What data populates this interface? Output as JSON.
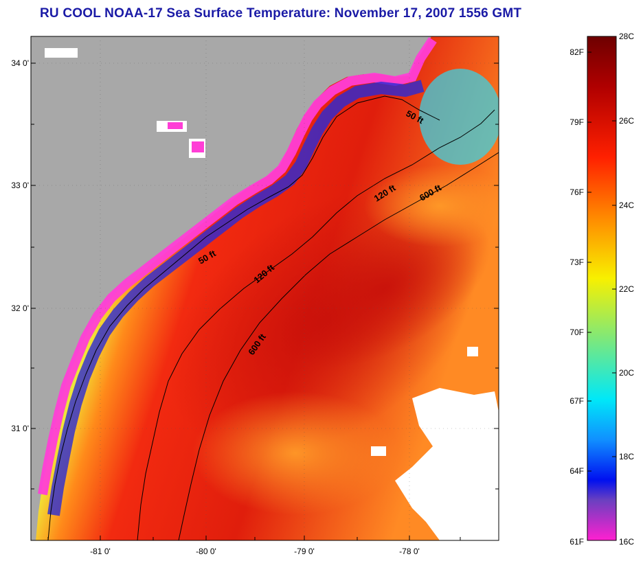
{
  "title": "RU COOL  NOAA-17  Sea Surface Temperature:  November 17, 2007 1556 GMT",
  "axes": {
    "lat_labels": [
      "34 0'",
      "33 0'",
      "32 0'",
      "31 0'"
    ],
    "lon_labels": [
      "-81 0'",
      "-80 0'",
      "-79 0'",
      "-78 0'"
    ]
  },
  "isobaths": {
    "depth_50": "50 ft",
    "depth_120": "120 ft",
    "depth_600": "600 ft"
  },
  "colorbar": {
    "fahrenheit": [
      "82F",
      "79F",
      "76F",
      "73F",
      "70F",
      "67F",
      "64F",
      "61F"
    ],
    "celsius": [
      "28C",
      "26C",
      "24C",
      "22C",
      "20C",
      "18C",
      "16C"
    ]
  },
  "colors": {
    "land": "#a8a8a8",
    "title": "#1a1aa6",
    "cloud": "#ffffff"
  }
}
